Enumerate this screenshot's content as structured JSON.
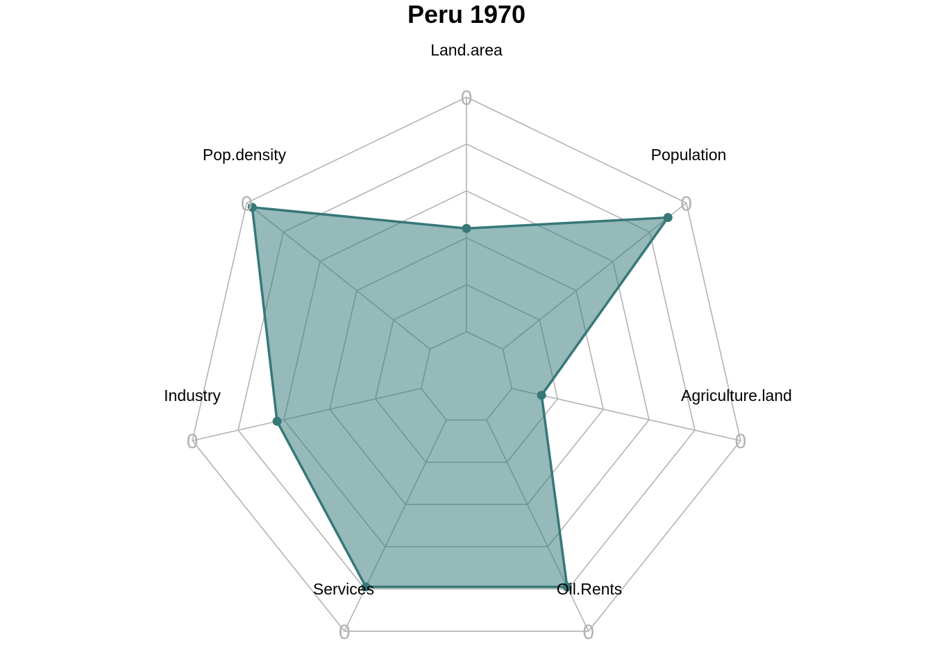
{
  "chart_data": {
    "type": "radar",
    "title": "Peru 1970",
    "axes": [
      "Land.area",
      "Population",
      "Agriculture.land",
      "Oil.Rents",
      "Services",
      "Industry",
      "Pop.density"
    ],
    "axis_tick_label": "0",
    "range": [
      0,
      1
    ],
    "grid_levels": 5,
    "series": [
      {
        "values": [
          0.44,
          0.9,
          0.13,
          0.79,
          0.79,
          0.63,
          0.97
        ]
      }
    ],
    "colors": {
      "series_line": "#367878",
      "series_fill": "#367878",
      "grid": "#b3b3b3"
    },
    "legend": "none"
  }
}
